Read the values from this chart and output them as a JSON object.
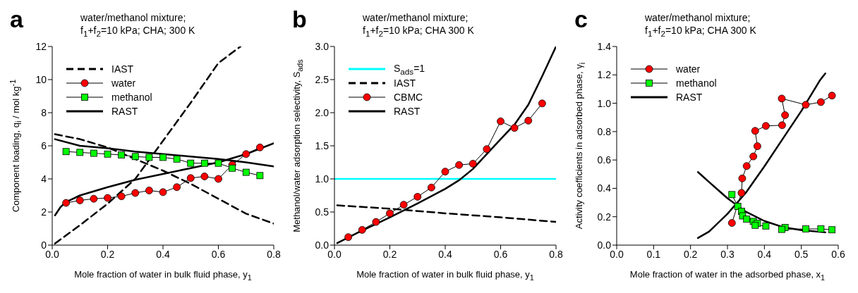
{
  "chart_data": [
    {
      "type": "line",
      "annotations": [
        "a",
        "water/methanol mixture;",
        "f$_{1}$+f$_{2}$=10 kPa; CHA; 300 K"
      ],
      "xlabel": "Mole fraction of water in bulk fluid phase, y$_{1}$",
      "ylabel": "Component loading, q$_{i}$ / mol kg$^{-1}$",
      "xlim": [
        0,
        0.8
      ],
      "xticks": [
        {
          "value": 0,
          "label": "0.0"
        },
        {
          "value": 0.2,
          "label": "0.2"
        },
        {
          "value": 0.4,
          "label": "0.4"
        },
        {
          "value": 0.6,
          "label": "0.6"
        },
        {
          "value": 0.8,
          "label": "0.8"
        }
      ],
      "ylim": [
        0,
        12
      ],
      "yticks": [
        0,
        2,
        4,
        6,
        8,
        10,
        12
      ],
      "legend": "top left",
      "series": [
        {
          "name": "IAST",
          "color": "#000000",
          "line_style": "dashed",
          "marker": "none",
          "x": [
            0.01,
            0.1,
            0.2,
            0.3,
            0.4,
            0.5,
            0.6,
            0.68
          ],
          "values": [
            0.1,
            1.2,
            2.5,
            4.0,
            6.3,
            8.6,
            11.0,
            12.0
          ]
        },
        {
          "color": "#000000",
          "line_style": "dashed",
          "marker": "none",
          "x": [
            0.01,
            0.1,
            0.2,
            0.3,
            0.4,
            0.5,
            0.6,
            0.7,
            0.8
          ],
          "values": [
            6.7,
            6.4,
            5.9,
            5.2,
            4.5,
            3.7,
            2.8,
            1.9,
            1.3
          ]
        },
        {
          "name": "water",
          "color": "#ff0000",
          "line_style": "solid",
          "marker": "circle",
          "x": [
            0.05,
            0.1,
            0.15,
            0.2,
            0.25,
            0.3,
            0.35,
            0.4,
            0.45,
            0.5,
            0.55,
            0.6,
            0.65,
            0.7,
            0.75
          ],
          "values": [
            2.55,
            2.7,
            2.8,
            2.85,
            2.95,
            3.15,
            3.3,
            3.2,
            3.5,
            4.05,
            4.15,
            4.0,
            4.85,
            5.5,
            5.9
          ]
        },
        {
          "name": "methanol",
          "color": "#00ff00",
          "line_style": "solid",
          "marker": "square",
          "x": [
            0.05,
            0.1,
            0.15,
            0.2,
            0.25,
            0.3,
            0.35,
            0.4,
            0.45,
            0.5,
            0.55,
            0.6,
            0.65,
            0.7,
            0.75
          ],
          "values": [
            5.65,
            5.6,
            5.55,
            5.5,
            5.45,
            5.35,
            5.3,
            5.3,
            5.2,
            4.95,
            4.95,
            4.95,
            4.65,
            4.4,
            4.2
          ]
        },
        {
          "name": "RAST",
          "color": "#000000",
          "line_style": "solid",
          "marker": "none",
          "x": [
            0.01,
            0.03,
            0.05,
            0.1,
            0.2,
            0.3,
            0.4,
            0.5,
            0.6,
            0.7,
            0.8
          ],
          "values": [
            1.8,
            2.3,
            2.6,
            3.0,
            3.5,
            3.95,
            4.3,
            4.65,
            5.0,
            5.5,
            6.15
          ]
        },
        {
          "color": "#000000",
          "line_style": "solid",
          "marker": "none",
          "x": [
            0.01,
            0.1,
            0.2,
            0.3,
            0.4,
            0.5,
            0.6,
            0.7,
            0.8
          ],
          "values": [
            6.4,
            6.0,
            5.85,
            5.65,
            5.5,
            5.35,
            5.2,
            5.0,
            4.75
          ]
        }
      ]
    },
    {
      "type": "line",
      "annotations": [
        "b",
        "water/methanol mixture;",
        "f$_{1}$+f$_{2}$=10 kPa; CHA 300 K"
      ],
      "xlabel": "Mole fraction of water in bulk fluid phase, y$_{1}$",
      "ylabel": "Methanol/water adsorption selectivity, S$_{ads}$",
      "xlim": [
        0,
        0.8
      ],
      "xticks": [
        {
          "value": 0,
          "label": "0.0"
        },
        {
          "value": 0.2,
          "label": "0.2"
        },
        {
          "value": 0.4,
          "label": "0.4"
        },
        {
          "value": 0.6,
          "label": "0.6"
        },
        {
          "value": 0.8,
          "label": "0.8"
        }
      ],
      "ylim": [
        0,
        3
      ],
      "yticks": [
        {
          "value": 0,
          "label": "0.0"
        },
        {
          "value": 0.5,
          "label": "0.5"
        },
        {
          "value": 1,
          "label": "1.0"
        },
        {
          "value": 1.5,
          "label": "1.5"
        },
        {
          "value": 2,
          "label": "2.0"
        },
        {
          "value": 2.5,
          "label": "2.5"
        },
        {
          "value": 3,
          "label": "3.0"
        }
      ],
      "legend": "top left",
      "series": [
        {
          "name": "S$_{ads}$=1",
          "color": "#00ffff",
          "line_style": "solid",
          "marker": "none",
          "x": [
            0,
            0.8
          ],
          "values": [
            1,
            1
          ]
        },
        {
          "name": "IAST",
          "color": "#000000",
          "line_style": "dashed",
          "marker": "none",
          "x": [
            0.01,
            0.2,
            0.4,
            0.6,
            0.8
          ],
          "values": [
            0.6,
            0.55,
            0.48,
            0.42,
            0.35
          ]
        },
        {
          "name": "CBMC",
          "color": "#ff0000",
          "line_style": "solid",
          "marker": "circle",
          "x": [
            0.05,
            0.1,
            0.15,
            0.2,
            0.25,
            0.3,
            0.35,
            0.4,
            0.45,
            0.5,
            0.55,
            0.6,
            0.65,
            0.7,
            0.75
          ],
          "values": [
            0.12,
            0.23,
            0.35,
            0.48,
            0.61,
            0.73,
            0.87,
            1.11,
            1.21,
            1.23,
            1.45,
            1.87,
            1.77,
            1.88,
            2.14
          ]
        },
        {
          "name": "RAST",
          "color": "#000000",
          "line_style": "solid",
          "marker": "none",
          "x": [
            0.01,
            0.1,
            0.2,
            0.3,
            0.4,
            0.45,
            0.5,
            0.6,
            0.65,
            0.7,
            0.75,
            0.8
          ],
          "values": [
            0.03,
            0.22,
            0.42,
            0.63,
            0.85,
            0.98,
            1.15,
            1.6,
            1.82,
            2.12,
            2.55,
            3.0
          ]
        }
      ]
    },
    {
      "type": "line",
      "annotations": [
        "c",
        "water/methanol mixture;",
        "f$_{1}$+f$_{2}$=10 kPa; CHA 300 K"
      ],
      "xlabel": "Mole fraction of water in the adsorbed phase, x$_{1}$",
      "ylabel": "Activity coefficients in adsorbed phase, γ$_{i}$",
      "xlim": [
        0,
        0.6
      ],
      "xticks": [
        {
          "value": 0,
          "label": "0.0"
        },
        {
          "value": 0.1,
          "label": "0.1"
        },
        {
          "value": 0.2,
          "label": "0.2"
        },
        {
          "value": 0.3,
          "label": "0.3"
        },
        {
          "value": 0.4,
          "label": "0.4"
        },
        {
          "value": 0.5,
          "label": "0.5"
        },
        {
          "value": 0.6,
          "label": "0.6"
        }
      ],
      "ylim": [
        0,
        1.4
      ],
      "yticks": [
        {
          "value": 0,
          "label": "0.0"
        },
        {
          "value": 0.2,
          "label": "0.2"
        },
        {
          "value": 0.4,
          "label": "0.4"
        },
        {
          "value": 0.6,
          "label": "0.6"
        },
        {
          "value": 0.8,
          "label": "0.8"
        },
        {
          "value": 1,
          "label": "1.0"
        },
        {
          "value": 1.2,
          "label": "1.2"
        },
        {
          "value": 1.4,
          "label": "1.4"
        }
      ],
      "legend": "top left",
      "series": [
        {
          "name": "water",
          "color": "#ff0000",
          "line_style": "solid",
          "marker": "circle",
          "x": [
            0.312,
            0.338,
            0.34,
            0.352,
            0.37,
            0.381,
            0.375,
            0.404,
            0.448,
            0.456,
            0.447,
            0.512,
            0.553,
            0.583
          ],
          "values": [
            0.156,
            0.368,
            0.47,
            0.557,
            0.625,
            0.697,
            0.805,
            0.84,
            0.845,
            0.916,
            1.033,
            0.989,
            1.008,
            1.054
          ]
        },
        {
          "name": "methanol",
          "color": "#00ff00",
          "line_style": "solid",
          "marker": "square",
          "x": [
            0.312,
            0.328,
            0.338,
            0.341,
            0.352,
            0.37,
            0.381,
            0.375,
            0.404,
            0.448,
            0.456,
            0.447,
            0.512,
            0.553,
            0.583
          ],
          "values": [
            0.356,
            0.273,
            0.238,
            0.206,
            0.183,
            0.167,
            0.154,
            0.14,
            0.135,
            null,
            0.124,
            0.111,
            0.114,
            0.114,
            0.108
          ]
        },
        {
          "name": "RAST",
          "color": "#000000",
          "line_style": "solid",
          "marker": "none",
          "x": [
            0.22,
            0.25,
            0.3,
            0.35,
            0.4,
            0.45,
            0.5,
            0.55,
            0.565
          ],
          "values": [
            0.05,
            0.095,
            0.22,
            0.37,
            0.555,
            0.75,
            0.945,
            1.16,
            1.21
          ]
        },
        {
          "color": "#000000",
          "line_style": "solid",
          "marker": "none",
          "x": [
            0.22,
            0.25,
            0.3,
            0.35,
            0.4,
            0.45,
            0.5,
            0.565
          ],
          "values": [
            0.515,
            0.445,
            0.33,
            0.235,
            0.17,
            0.127,
            0.106,
            0.09
          ]
        }
      ]
    }
  ]
}
